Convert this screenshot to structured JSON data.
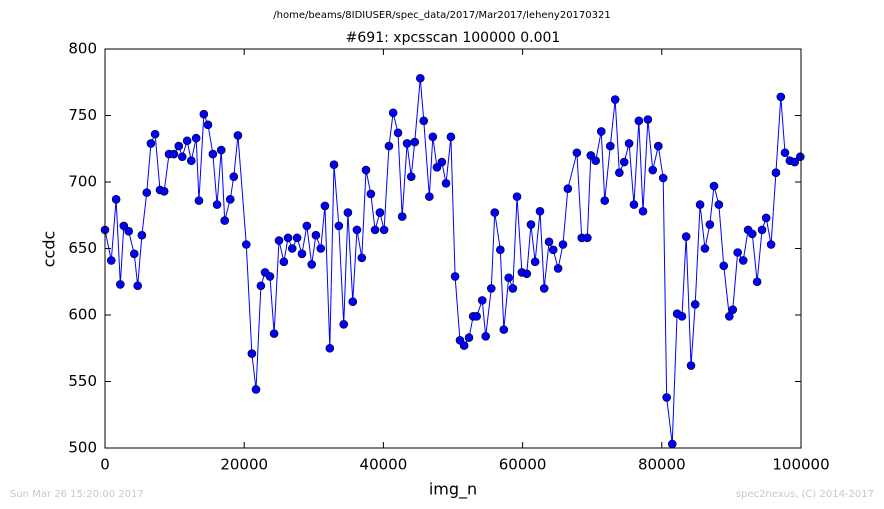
{
  "chart_data": {
    "type": "line",
    "suptitle": "/home/beams/8IDIUSER/spec_data/2017/Mar2017/leheny20170321",
    "title": "#691: xpcsscan 100000 0.001",
    "xlabel": "img_n",
    "ylabel": "ccdc",
    "footer_left": "Sun Mar 26 15:20:00 2017",
    "footer_right": "spec2nexus, (C) 2014-2017",
    "color": "#0000ff",
    "xlim": [
      0,
      100000
    ],
    "xticks": [
      0,
      20000,
      40000,
      60000,
      80000,
      100000
    ],
    "ylim": [
      500,
      800
    ],
    "yticks": [
      500,
      550,
      600,
      650,
      700,
      750,
      800
    ],
    "x": [
      0,
      900,
      1600,
      2200,
      2700,
      3400,
      4200,
      4700,
      5300,
      6000,
      6600,
      7200,
      7900,
      8500,
      9200,
      9900,
      10600,
      11100,
      11800,
      12400,
      13100,
      13500,
      14200,
      14800,
      15500,
      16100,
      16700,
      17200,
      18000,
      18500,
      19100,
      20300,
      21100,
      21700,
      22400,
      23000,
      23700,
      24300,
      25000,
      25700,
      26300,
      26900,
      27600,
      28300,
      29000,
      29700,
      30300,
      31000,
      31600,
      32300,
      32900,
      33600,
      34300,
      34900,
      35600,
      36200,
      36900,
      37500,
      38200,
      38800,
      39500,
      40100,
      40800,
      41400,
      42100,
      42700,
      43400,
      44000,
      44500,
      45300,
      45800,
      46600,
      47100,
      47700,
      48400,
      49000,
      49700,
      50300,
      51000,
      51600,
      52300,
      52900,
      53400,
      54200,
      54700,
      55500,
      56000,
      56800,
      57300,
      58000,
      58600,
      59200,
      59900,
      60600,
      61200,
      61800,
      62500,
      63100,
      63800,
      64400,
      65100,
      65800,
      66500,
      67800,
      68500,
      69300,
      69800,
      70500,
      71300,
      71800,
      72600,
      73300,
      73900,
      74600,
      75300,
      76000,
      76700,
      77300,
      78000,
      78700,
      79500,
      80200,
      80700,
      81500,
      82200,
      82900,
      83500,
      84200,
      84800,
      85500,
      86200,
      86900,
      87500,
      88200,
      88900,
      89700,
      90200,
      90900,
      91700,
      92400,
      93000,
      93700,
      94400,
      95000,
      95700,
      96400,
      97100,
      97700,
      98400,
      99100,
      99900
    ],
    "values": [
      664,
      641,
      687,
      623,
      667,
      663,
      646,
      622,
      660,
      692,
      729,
      736,
      694,
      693,
      721,
      721,
      727,
      719,
      731,
      716,
      733,
      686,
      751,
      743,
      721,
      683,
      724,
      671,
      687,
      704,
      735,
      653,
      571,
      544,
      622,
      632,
      629,
      586,
      656,
      640,
      658,
      650,
      658,
      646,
      667,
      638,
      660,
      650,
      682,
      575,
      713,
      667,
      593,
      677,
      610,
      664,
      643,
      709,
      691,
      664,
      677,
      664,
      727,
      752,
      737,
      674,
      729,
      704,
      730,
      778,
      746,
      689,
      734,
      711,
      715,
      699,
      734,
      629,
      581,
      577,
      583,
      599,
      599,
      611,
      584,
      620,
      677,
      649,
      589,
      628,
      620,
      689,
      632,
      631,
      668,
      640,
      678,
      620,
      655,
      649,
      635,
      653,
      695,
      722,
      658,
      658,
      720,
      716,
      738,
      686,
      727,
      762,
      707,
      715,
      729,
      683,
      746,
      678,
      747,
      709,
      727,
      703,
      538,
      503,
      601,
      599,
      659,
      562,
      608,
      683,
      650,
      668,
      697,
      683,
      637,
      599,
      604,
      647,
      641,
      664,
      661,
      625,
      664,
      673,
      653,
      707,
      764,
      722,
      716,
      715,
      719
    ]
  }
}
